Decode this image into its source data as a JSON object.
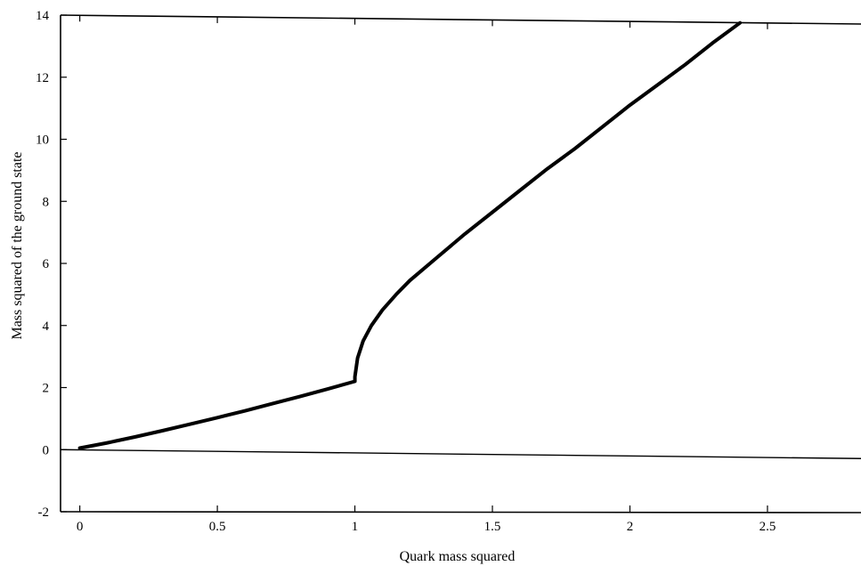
{
  "chart_data": {
    "type": "line",
    "title": "",
    "xlabel": "Quark mass squared",
    "ylabel": "Mass squared of the ground state",
    "xlim": [
      -0.07,
      2.84
    ],
    "ylim": [
      -2,
      14
    ],
    "x_ticks": [
      {
        "value": 0,
        "label": "0"
      },
      {
        "value": 0.5,
        "label": "0.5"
      },
      {
        "value": 1,
        "label": "1"
      },
      {
        "value": 1.5,
        "label": "1.5"
      },
      {
        "value": 2,
        "label": "2"
      },
      {
        "value": 2.5,
        "label": "2.5"
      }
    ],
    "y_ticks": [
      {
        "value": -2,
        "label": "-2"
      },
      {
        "value": 0,
        "label": "0"
      },
      {
        "value": 2,
        "label": "2"
      },
      {
        "value": 4,
        "label": "4"
      },
      {
        "value": 6,
        "label": "6"
      },
      {
        "value": 8,
        "label": "8"
      },
      {
        "value": 10,
        "label": "10"
      },
      {
        "value": 12,
        "label": "12"
      },
      {
        "value": 14,
        "label": "14"
      }
    ],
    "grid": false,
    "legend": "none",
    "zero_line": true,
    "series": [
      {
        "color": "#000000",
        "x": [
          0,
          0.1,
          0.2,
          0.3,
          0.4,
          0.5,
          0.6,
          0.7,
          0.8,
          0.9,
          1.0,
          1.0,
          1.01,
          1.03,
          1.06,
          1.1,
          1.15,
          1.2,
          1.3,
          1.4,
          1.5,
          1.6,
          1.7,
          1.8,
          1.9,
          2.0,
          2.1,
          2.2,
          2.3,
          2.4
        ],
        "y": [
          0.05,
          0.22,
          0.41,
          0.61,
          0.82,
          1.03,
          1.25,
          1.48,
          1.71,
          1.95,
          2.2,
          2.35,
          2.95,
          3.5,
          4.0,
          4.5,
          5.0,
          5.45,
          6.2,
          6.95,
          7.65,
          8.35,
          9.05,
          9.7,
          10.4,
          11.1,
          11.75,
          12.4,
          13.1,
          13.75
        ]
      }
    ]
  }
}
